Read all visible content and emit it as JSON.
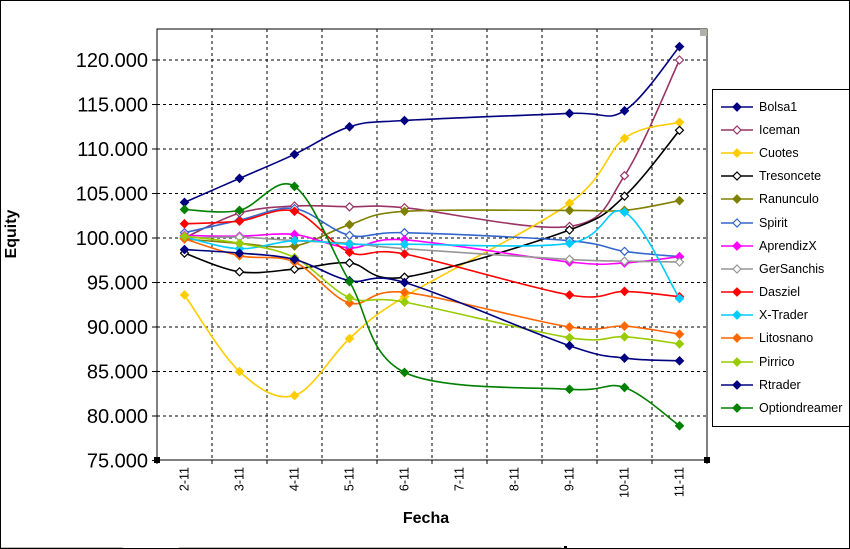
{
  "chart": {
    "y_axis": {
      "title": "Equity",
      "tick_labels": [
        "75.000",
        "80.000",
        "85.000",
        "90.000",
        "95.000",
        "100.000",
        "105.000",
        "110.000",
        "115.000",
        "120.000"
      ],
      "min": 75000,
      "max": 120000,
      "step": 5000
    },
    "x_axis": {
      "title": "Fecha",
      "categories": [
        "2-11",
        "3-11",
        "4-11",
        "5-11",
        "6-11",
        "7-11",
        "8-11",
        "9-11",
        "10-11",
        "11-11"
      ]
    }
  },
  "chart_data": {
    "type": "line",
    "smoothed": true,
    "grid": true,
    "legend_position": "right",
    "title": "",
    "xlabel": "Fecha",
    "ylabel": "Equity",
    "ylim": [
      75000,
      123500
    ],
    "categories": [
      "2-11",
      "3-11",
      "4-11",
      "5-11",
      "6-11",
      "7-11",
      "8-11",
      "9-11",
      "10-11",
      "11-11"
    ],
    "series": [
      {
        "name": "Bolsa1",
        "color": "#000080",
        "marker": "filled",
        "values": [
          104000,
          106700,
          109400,
          112500,
          113200,
          null,
          null,
          114000,
          114300,
          121500
        ]
      },
      {
        "name": "Iceman",
        "color": "#993366",
        "marker": "open",
        "values": [
          100000,
          102800,
          103600,
          103500,
          103400,
          null,
          null,
          101300,
          107000,
          120000
        ]
      },
      {
        "name": "Cuotes",
        "color": "#FFCC00",
        "marker": "filled",
        "values": [
          93600,
          85000,
          82300,
          88700,
          93400,
          null,
          null,
          103900,
          111200,
          113000
        ]
      },
      {
        "name": "Tresoncete",
        "color": "#000000",
        "marker": "open",
        "values": [
          98300,
          96200,
          96500,
          97200,
          95600,
          null,
          null,
          100900,
          104700,
          112100
        ]
      },
      {
        "name": "Ranunculo",
        "color": "#808000",
        "marker": "filled",
        "values": [
          99900,
          99400,
          99100,
          101500,
          103000,
          null,
          null,
          103100,
          103100,
          104200
        ]
      },
      {
        "name": "Spirit",
        "color": "#3366CC",
        "marker": "open",
        "values": [
          100600,
          102000,
          103300,
          100300,
          100600,
          null,
          null,
          99700,
          98500,
          97900
        ]
      },
      {
        "name": "AprendizX",
        "color": "#FF00FF",
        "marker": "filled",
        "values": [
          100300,
          100200,
          100400,
          98900,
          99800,
          null,
          null,
          97300,
          97200,
          97900
        ]
      },
      {
        "name": "GerSanchis",
        "color": "#969696",
        "marker": "open",
        "values": [
          100000,
          100100,
          99700,
          99400,
          98800,
          null,
          null,
          97600,
          97400,
          97300
        ]
      },
      {
        "name": "Dasziel",
        "color": "#FF0000",
        "marker": "filled",
        "values": [
          101600,
          101900,
          103000,
          98400,
          98200,
          null,
          null,
          93600,
          94000,
          93400
        ]
      },
      {
        "name": "X-Trader",
        "color": "#00CCFF",
        "marker": "filled",
        "values": [
          100100,
          98800,
          99700,
          99300,
          99300,
          null,
          null,
          99400,
          102900,
          93200
        ]
      },
      {
        "name": "Litosnano",
        "color": "#FF6600",
        "marker": "filled",
        "values": [
          99900,
          98000,
          97300,
          92700,
          93900,
          null,
          null,
          90000,
          90100,
          89200
        ]
      },
      {
        "name": "Pirrico",
        "color": "#99CC00",
        "marker": "filled",
        "values": [
          100200,
          99400,
          97800,
          93300,
          92800,
          null,
          null,
          88800,
          88900,
          88100
        ]
      },
      {
        "name": "Rtrader",
        "color": "#000080",
        "marker": "filled",
        "values": [
          98700,
          98300,
          97600,
          95200,
          95000,
          null,
          null,
          87900,
          86500,
          86200
        ]
      },
      {
        "name": "Optiondreamer",
        "color": "#008000",
        "marker": "filled",
        "values": [
          103200,
          103100,
          105800,
          95100,
          84900,
          null,
          null,
          83000,
          83200,
          78900
        ]
      }
    ]
  }
}
